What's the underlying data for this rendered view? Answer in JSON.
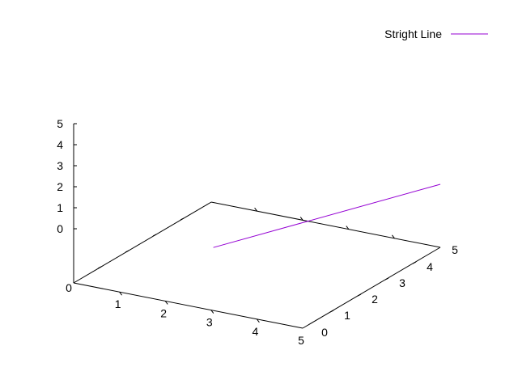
{
  "chart_data": {
    "type": "line",
    "series": [
      {
        "name": "Stright Line",
        "color": "#9400d3",
        "points": [
          {
            "x": 3.05,
            "y": 0.0,
            "z": 3.0
          },
          {
            "x": 5.0,
            "y": 5.0,
            "z": 3.0
          }
        ]
      }
    ],
    "xlim": [
      0,
      5
    ],
    "ylim": [
      0,
      5
    ],
    "zlim": [
      0,
      5
    ],
    "x_ticks": [
      "0",
      "1",
      "2",
      "3",
      "4",
      "5"
    ],
    "y_ticks": [
      "0",
      "1",
      "2",
      "3",
      "4",
      "5"
    ],
    "z_ticks": [
      "0",
      "1",
      "2",
      "3",
      "4",
      "5"
    ],
    "grid": false,
    "legend": "top-right",
    "axis_color": "#000000"
  }
}
